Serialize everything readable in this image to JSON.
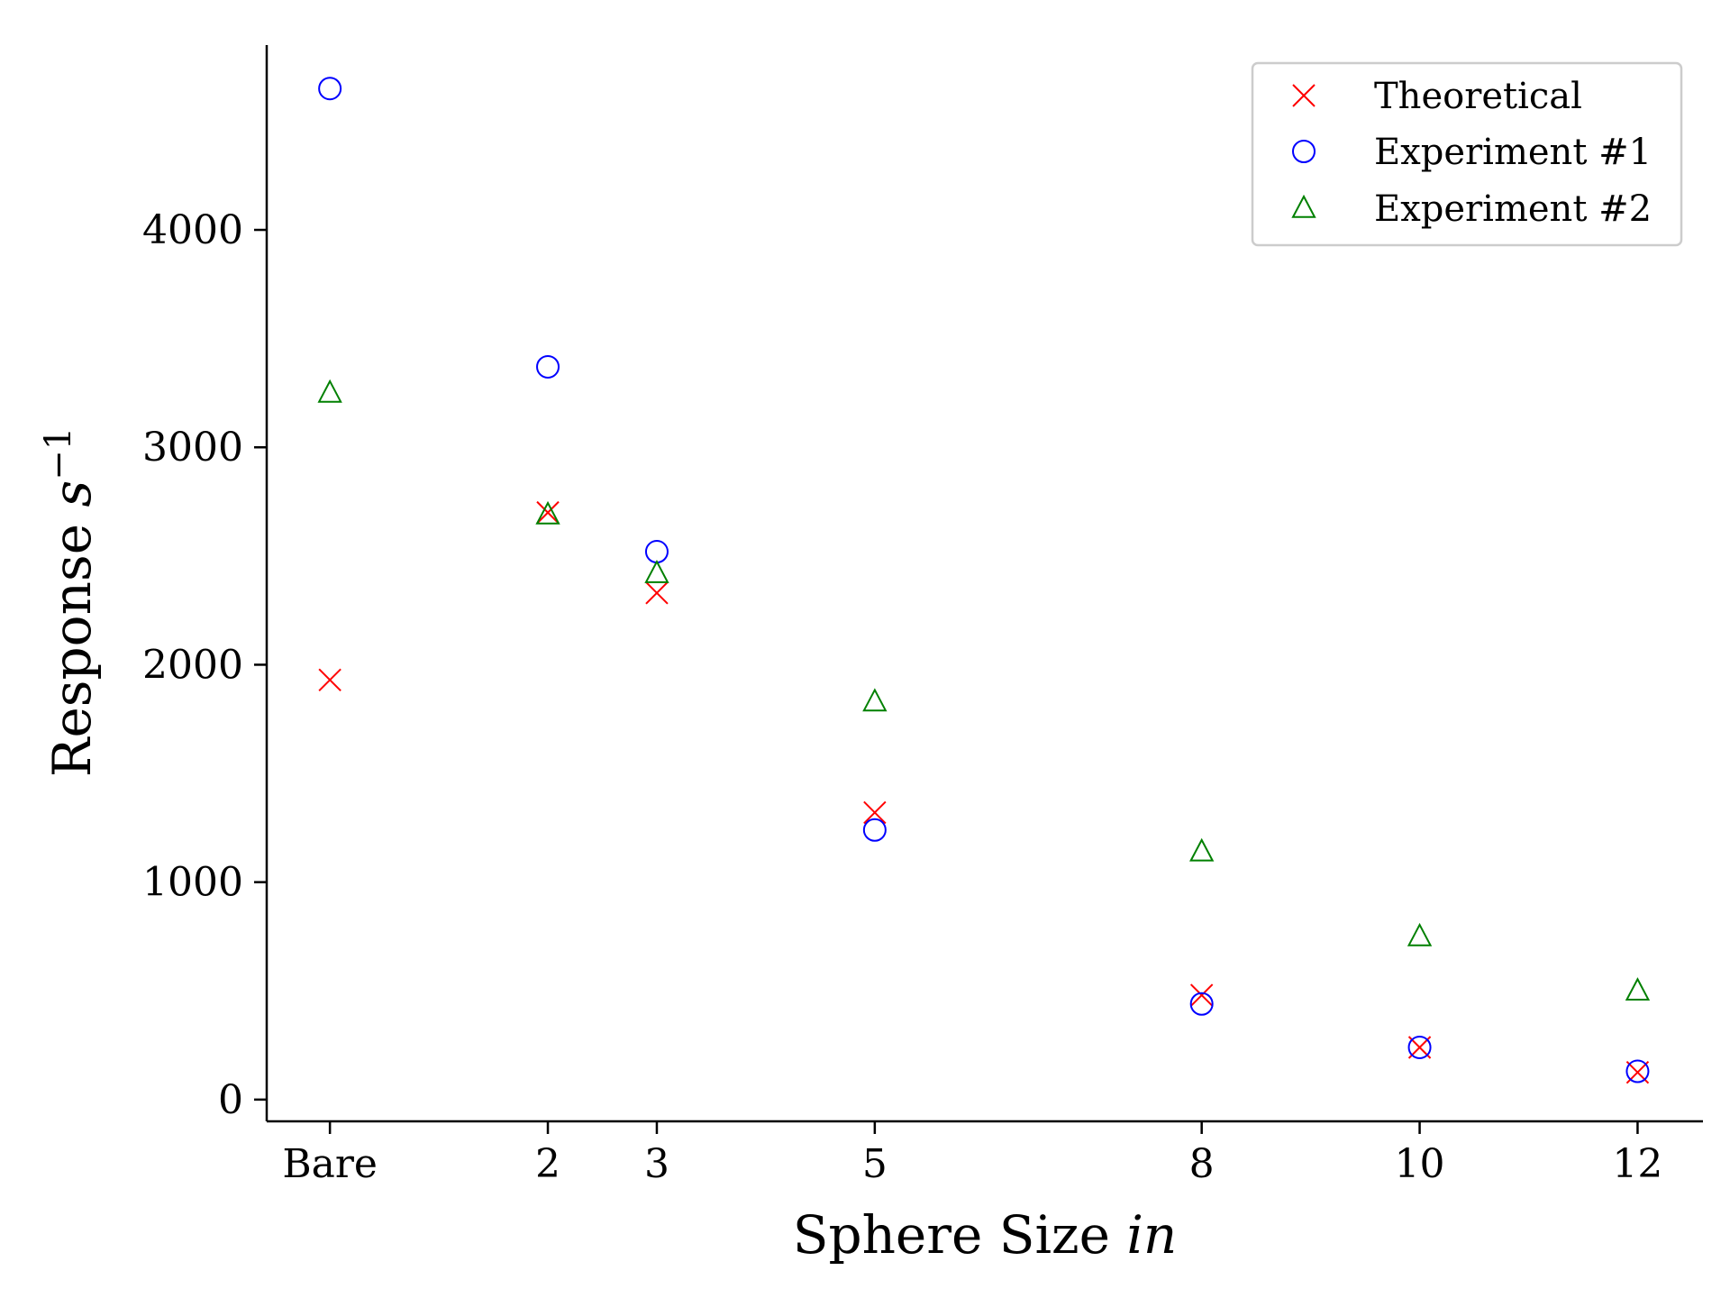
{
  "chart_data": {
    "type": "scatter",
    "title": "",
    "xlabel": {
      "text": "Sphere Size ",
      "unit": "in"
    },
    "ylabel": {
      "text": "Response ",
      "unit": "s",
      "exponent": "−1"
    },
    "x_ticks": [
      {
        "value": 0,
        "label": "Bare"
      },
      {
        "value": 2,
        "label": "2"
      },
      {
        "value": 3,
        "label": "3"
      },
      {
        "value": 5,
        "label": "5"
      },
      {
        "value": 8,
        "label": "8"
      },
      {
        "value": 10,
        "label": "10"
      },
      {
        "value": 12,
        "label": "12"
      }
    ],
    "y_ticks": [
      0,
      1000,
      2000,
      3000,
      4000
    ],
    "xlim": [
      -0.58,
      12.6
    ],
    "ylim": [
      -100,
      4850
    ],
    "grid": false,
    "legend_position": "top-right",
    "series": [
      {
        "name": "Theoretical",
        "marker": "x",
        "color": "#ff0000",
        "points": [
          [
            0,
            1930
          ],
          [
            2,
            2700
          ],
          [
            3,
            2330
          ],
          [
            5,
            1320
          ],
          [
            8,
            480
          ],
          [
            10,
            240
          ],
          [
            12,
            125
          ]
        ]
      },
      {
        "name": "Experiment #1",
        "marker": "circle",
        "color": "#0000ff",
        "points": [
          [
            0,
            4650
          ],
          [
            2,
            3370
          ],
          [
            3,
            2520
          ],
          [
            5,
            1240
          ],
          [
            8,
            440
          ],
          [
            10,
            240
          ],
          [
            12,
            130
          ]
        ]
      },
      {
        "name": "Experiment #2",
        "marker": "triangle",
        "color": "#008000",
        "points": [
          [
            0,
            3250
          ],
          [
            2,
            2690
          ],
          [
            3,
            2420
          ],
          [
            5,
            1830
          ],
          [
            8,
            1140
          ],
          [
            10,
            750
          ],
          [
            12,
            500
          ]
        ]
      }
    ]
  }
}
